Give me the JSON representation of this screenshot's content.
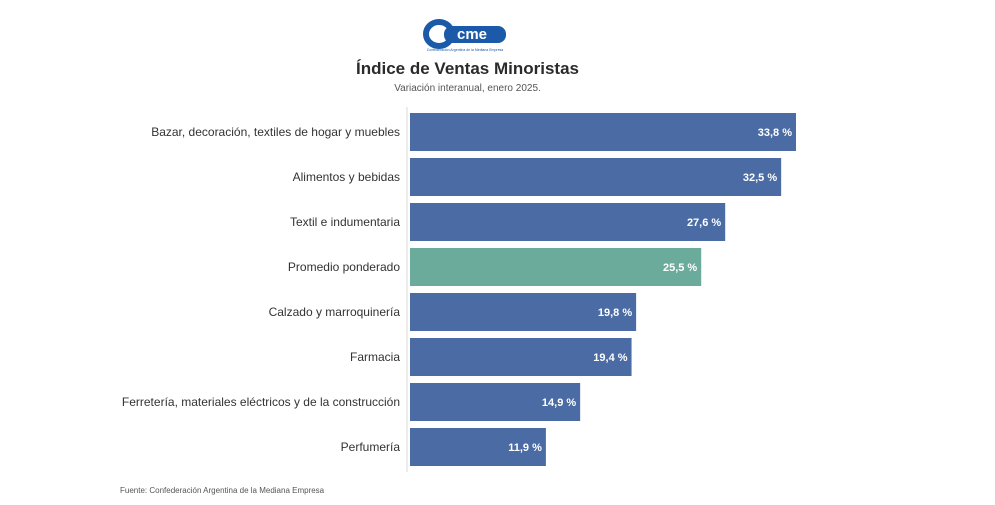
{
  "logo": {
    "text": "cme",
    "tagline": "Confederación Argentina de la Mediana Empresa"
  },
  "header": {
    "title": "Índice de Ventas Minoristas",
    "subtitle": "Variación interanual, enero 2025."
  },
  "footer": {
    "source": "Fuente: Confederación Argentina de la Mediana Empresa"
  },
  "colors": {
    "bar": "#4a6ba3",
    "highlight": "#6aab9c",
    "label_text": "#ffffff",
    "category_text": "#333333"
  },
  "chart_data": {
    "type": "bar",
    "orientation": "horizontal",
    "categories": [
      "Bazar, decoración, textiles de hogar y muebles",
      "Alimentos y bebidas",
      "Textil e indumentaria",
      "Promedio ponderado",
      "Calzado y marroquinería",
      "Farmacia",
      "Ferretería, materiales eléctricos y de la construcción",
      "Perfumería"
    ],
    "values": [
      33.8,
      32.5,
      27.6,
      25.5,
      19.8,
      19.4,
      14.9,
      11.9
    ],
    "data_labels": [
      "33,8 %",
      "32,5 %",
      "27,6 %",
      "25,5 %",
      "19,8 %",
      "19,4 %",
      "14,9 %",
      "11,9 %"
    ],
    "highlighted_category": "Promedio ponderado",
    "xlim": [
      0,
      33.8
    ],
    "grid": false,
    "legend": "none"
  }
}
